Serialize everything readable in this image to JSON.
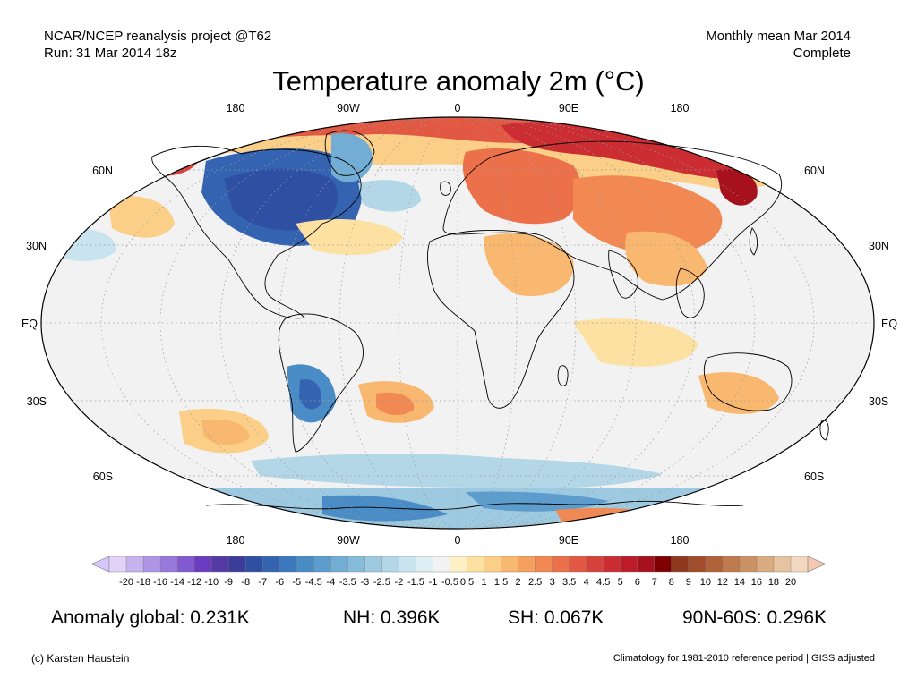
{
  "header": {
    "source_line1": "NCAR/NCEP reanalysis project @T62",
    "source_line2": "Run: 31 Mar 2014 18z",
    "period_line1": "Monthly mean Mar 2014",
    "period_line2": "Complete"
  },
  "map": {
    "title": "Temperature anomaly 2m (°C)",
    "projection": "Robinson",
    "longitude_labels": [
      "180",
      "90W",
      "0",
      "90E",
      "180"
    ],
    "latitude_labels": [
      "60N",
      "30N",
      "EQ",
      "30S",
      "60S"
    ],
    "colors": {
      "ocean_neutral": "#f2f2f2",
      "coastline": "#000000",
      "grid": "#999999"
    },
    "anomaly_regions": [
      {
        "region": "Arctic / Siberia",
        "anomaly": "warm",
        "color": "#d7301f"
      },
      {
        "region": "Eastern Europe",
        "anomaly": "warm",
        "color": "#e34a33"
      },
      {
        "region": "North America (central/east)",
        "anomaly": "cold",
        "color": "#2c57a8"
      },
      {
        "region": "Alaska",
        "anomaly": "warm",
        "color": "#e34a33"
      },
      {
        "region": "East Siberia",
        "anomaly": "warm",
        "color": "#b30000"
      },
      {
        "region": "Southern South America",
        "anomaly": "cold",
        "color": "#4a6fb5"
      },
      {
        "region": "Antarctic coast",
        "anomaly": "cold",
        "color": "#6a8ec6"
      },
      {
        "region": "Antarctic margin",
        "anomaly": "warm",
        "color": "#e34a33"
      }
    ]
  },
  "colorbar": {
    "tick_labels": [
      "-20",
      "-18",
      "-16",
      "-14",
      "-12",
      "-10",
      "-9",
      "-8",
      "-7",
      "-6",
      "-5",
      "-4.5",
      "-4",
      "-3.5",
      "-3",
      "-2.5",
      "-2",
      "-1.5",
      "-1",
      "-0.5",
      "0.5",
      "1",
      "1.5",
      "2",
      "2.5",
      "3",
      "3.5",
      "4",
      "4.5",
      "5",
      "6",
      "7",
      "8",
      "9",
      "10",
      "12",
      "14",
      "16",
      "18",
      "20"
    ],
    "colors": [
      "#e0d3f5",
      "#c7b3ee",
      "#af95e5",
      "#9878db",
      "#8259cf",
      "#6b3cbf",
      "#533aa4",
      "#3c3d9a",
      "#2f4fa3",
      "#3464b1",
      "#3b78bd",
      "#4a8cc6",
      "#5c9dce",
      "#71add5",
      "#86bcdb",
      "#9ecae1",
      "#b4d7e8",
      "#c9e3ef",
      "#ddeef5",
      "#f2f2f2",
      "#fdf0c7",
      "#fce1a3",
      "#fbcf87",
      "#f9b870",
      "#f6a05e",
      "#f28852",
      "#ec7049",
      "#e35842",
      "#d8413b",
      "#cc2d32",
      "#bb1c27",
      "#a6111d",
      "#7f0000",
      "#8f3a20",
      "#a04d2c",
      "#b06238",
      "#bf7a4d",
      "#cd9264",
      "#daab80",
      "#e7c4a0",
      "#f2d8c0"
    ],
    "end_left_color": "#d6c6ff",
    "end_right_color": "#f4c8b3"
  },
  "stats": {
    "global": "Anomaly global: 0.231K",
    "nh": "NH: 0.396K",
    "sh": "SH: 0.067K",
    "polar": "90N-60S: 0.296K"
  },
  "footer": {
    "credit": "(c) Karsten Haustein",
    "note": "Climatology for 1981-2010 reference period | GISS adjusted"
  }
}
